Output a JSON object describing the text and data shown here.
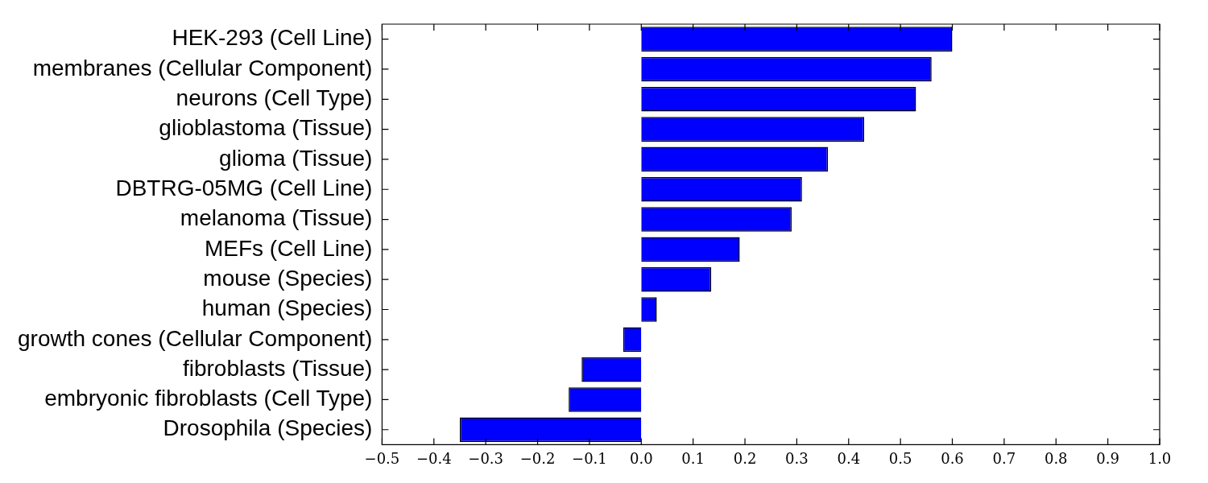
{
  "chart_data": {
    "type": "bar",
    "orientation": "horizontal",
    "categories": [
      "HEK-293 (Cell Line)",
      "membranes (Cellular Component)",
      "neurons (Cell Type)",
      "glioblastoma (Tissue)",
      "glioma (Tissue)",
      "DBTRG-05MG (Cell Line)",
      "melanoma (Tissue)",
      "MEFs (Cell Line)",
      "mouse (Species)",
      "human (Species)",
      "growth cones (Cellular Component)",
      "fibroblasts (Tissue)",
      "embryonic fibroblasts (Cell Type)",
      "Drosophila (Species)"
    ],
    "values": [
      0.6,
      0.56,
      0.53,
      0.43,
      0.36,
      0.31,
      0.29,
      0.19,
      0.135,
      0.03,
      -0.035,
      -0.115,
      -0.14,
      -0.35
    ],
    "color": "#0000ff",
    "xlim": [
      -0.5,
      1.0
    ],
    "xticks": [
      {
        "value": -0.5,
        "label": "−0.5"
      },
      {
        "value": -0.4,
        "label": "−0.4"
      },
      {
        "value": -0.3,
        "label": "−0.3"
      },
      {
        "value": -0.2,
        "label": "−0.2"
      },
      {
        "value": -0.1,
        "label": "−0.1"
      },
      {
        "value": 0,
        "label": "0.0"
      },
      {
        "value": 0.1,
        "label": "0.1"
      },
      {
        "value": 0.2,
        "label": "0.2"
      },
      {
        "value": 0.3,
        "label": "0.3"
      },
      {
        "value": 0.4,
        "label": "0.4"
      },
      {
        "value": 0.5,
        "label": "0.5"
      },
      {
        "value": 0.6,
        "label": "0.6"
      },
      {
        "value": 0.7,
        "label": "0.7"
      },
      {
        "value": 0.8,
        "label": "0.8"
      },
      {
        "value": 0.9,
        "label": "0.9"
      },
      {
        "value": 1.0,
        "label": "1.0"
      }
    ],
    "grid": false,
    "legend": false
  }
}
